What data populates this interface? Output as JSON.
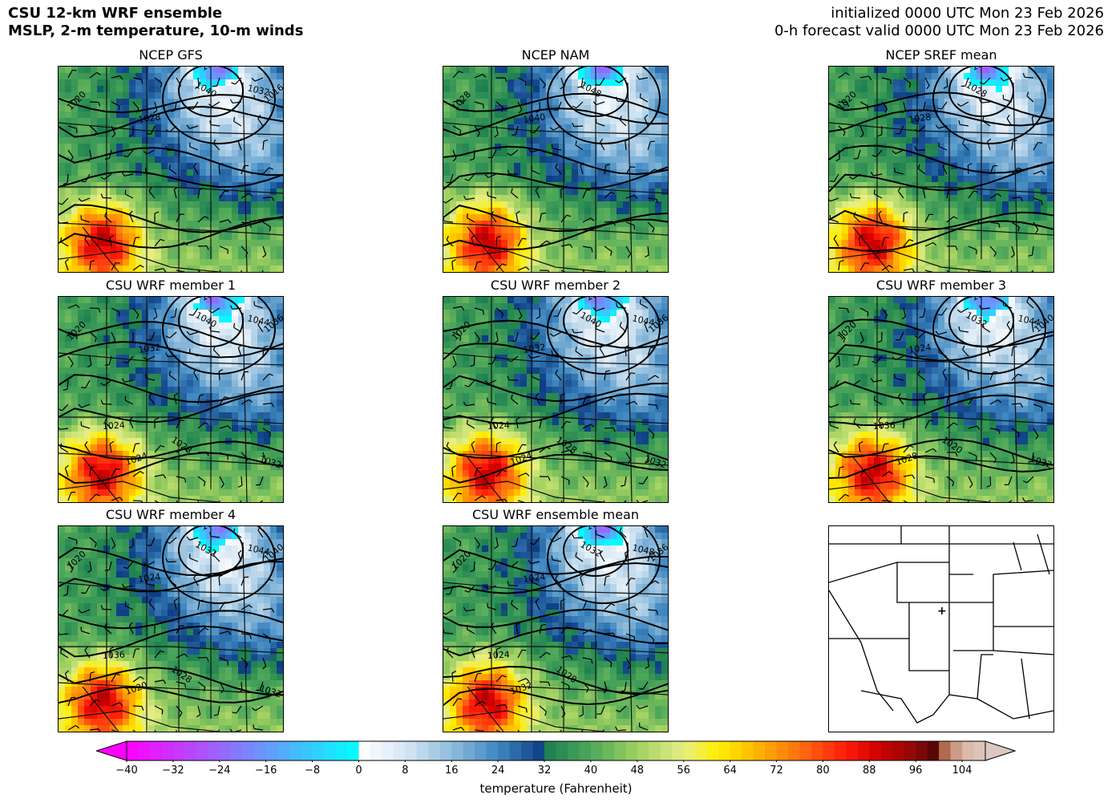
{
  "header": {
    "title_line1": "CSU 12-km WRF ensemble",
    "title_line2": "MSLP, 2-m temperature, 10-m winds",
    "init_text": "initialized 0000 UTC Mon 23 Feb 2026",
    "valid_text": "0-h forecast valid 0000 UTC Mon 23 Feb 2026"
  },
  "panels": [
    {
      "title": "NCEP GFS",
      "labels": [
        "1020",
        "1028",
        "1040",
        "1048",
        "1032",
        "1016"
      ]
    },
    {
      "title": "NCEP NAM",
      "labels": [
        "1028",
        "1040",
        "1048"
      ]
    },
    {
      "title": "NCEP SREF mean",
      "labels": [
        "1020",
        "1028",
        "1028",
        "1032"
      ]
    },
    {
      "title": "CSU WRF member 1",
      "labels": [
        "1020",
        "1032",
        "1040",
        "1048",
        "1044",
        "1036",
        "1024",
        "1028",
        "1024",
        "1032"
      ]
    },
    {
      "title": "CSU WRF member 2",
      "labels": [
        "1020",
        "1032",
        "1040",
        "1048",
        "1044",
        "1036",
        "1024",
        "1028",
        "1024",
        "1032"
      ]
    },
    {
      "title": "CSU WRF member 3",
      "labels": [
        "1020",
        "1024",
        "1032",
        "1048",
        "1044",
        "1040",
        "1036",
        "1020",
        "1028",
        "1032"
      ]
    },
    {
      "title": "CSU WRF member 4",
      "labels": [
        "1020",
        "1024",
        "1032",
        "1048",
        "1044",
        "1040",
        "1036",
        "1028",
        "1020",
        "1032"
      ]
    },
    {
      "title": "CSU WRF ensemble mean",
      "labels": [
        "1020",
        "1024",
        "1032",
        "1044",
        "1048",
        "1036",
        "1024",
        "1028",
        "1032"
      ]
    }
  ],
  "reference_map": {
    "marker": "+"
  },
  "colorbar": {
    "label": "temperature (Fahrenheit)",
    "ticks": [
      "−40",
      "−32",
      "−24",
      "−16",
      "−8",
      "0",
      "8",
      "16",
      "24",
      "32",
      "40",
      "48",
      "56",
      "64",
      "72",
      "80",
      "88",
      "96",
      "104"
    ],
    "min": -40,
    "max": 108,
    "stops": [
      {
        "t": -40,
        "c": "#ff00ff"
      },
      {
        "t": -32,
        "c": "#cc33ff"
      },
      {
        "t": -24,
        "c": "#9966ff"
      },
      {
        "t": -16,
        "c": "#6699ff"
      },
      {
        "t": -8,
        "c": "#33ccff"
      },
      {
        "t": -0.01,
        "c": "#00ffff"
      },
      {
        "t": 0,
        "c": "#ffffff"
      },
      {
        "t": 8,
        "c": "#d7e7f4"
      },
      {
        "t": 16,
        "c": "#8fbcdc"
      },
      {
        "t": 24,
        "c": "#3e87c0"
      },
      {
        "t": 31.9,
        "c": "#0d3d82"
      },
      {
        "t": 32,
        "c": "#1a7e50"
      },
      {
        "t": 40,
        "c": "#4ea75a"
      },
      {
        "t": 48,
        "c": "#9fd060"
      },
      {
        "t": 56,
        "c": "#e6ee84"
      },
      {
        "t": 62,
        "c": "#ffef00"
      },
      {
        "t": 68,
        "c": "#ffbb00"
      },
      {
        "t": 76,
        "c": "#ff6e10"
      },
      {
        "t": 84,
        "c": "#ff1a0a"
      },
      {
        "t": 90,
        "c": "#cc0000"
      },
      {
        "t": 96,
        "c": "#8b0a0a"
      },
      {
        "t": 100,
        "c": "#4a0505"
      },
      {
        "t": 101,
        "c": "#b06a50"
      },
      {
        "t": 104,
        "c": "#dcb4a0"
      },
      {
        "t": 108,
        "c": "#dcc8c0"
      }
    ]
  }
}
